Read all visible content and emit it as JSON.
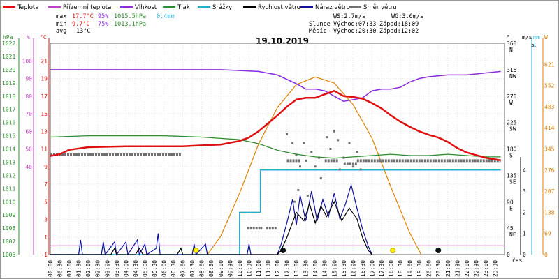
{
  "legend": [
    {
      "label": "Teplota",
      "color": "#e01010"
    },
    {
      "label": "Přízemní teplota",
      "color": "#c040c0"
    },
    {
      "label": "Vlhkost",
      "color": "#8a2be2"
    },
    {
      "label": "Tlak",
      "color": "#2e8b2e"
    },
    {
      "label": "Srážky",
      "color": "#20b0d0"
    },
    {
      "label": "Rychlost větru",
      "color": "#000000"
    },
    {
      "label": "Náraz větru",
      "color": "#1010a0"
    },
    {
      "label": "Směr větru",
      "color": "#707070"
    }
  ],
  "stats": {
    "max": {
      "label": "max",
      "temp": "17.7°C",
      "hum": "95%",
      "press": "1015.5hPa",
      "rain": "0.4mm"
    },
    "min": {
      "label": "min",
      "temp": "9.7°C",
      "hum": "75%",
      "press": "1013.1hPa"
    },
    "avg": {
      "label": "avg",
      "temp": "13°C"
    }
  },
  "wind_info": {
    "ws": "WS:2.7m/s",
    "wg": "WG:3.6m/s"
  },
  "sun_info": {
    "label": "Slunce",
    "rise": "Východ:07:33",
    "set": "Západ:18:09"
  },
  "moon_info": {
    "label": "Měsíc",
    "rise": "Východ:20:30",
    "set": "Západ:12:02"
  },
  "chart_data": {
    "type": "line",
    "title": "19.10.2019",
    "xlabel": "čas",
    "x_ticks": [
      "00:00",
      "00:30",
      "01:00",
      "01:30",
      "02:00",
      "02:30",
      "03:00",
      "03:30",
      "04:00",
      "04:30",
      "05:00",
      "05:30",
      "06:00",
      "06:30",
      "07:00",
      "07:30",
      "08:00",
      "08:30",
      "09:00",
      "09:30",
      "10:00",
      "10:30",
      "11:00",
      "11:30",
      "12:00",
      "12:30",
      "13:00",
      "13:30",
      "14:00",
      "14:30",
      "15:00",
      "15:30",
      "16:00",
      "16:30",
      "17:00",
      "17:30",
      "18:00",
      "18:30",
      "19:00",
      "19:30",
      "20:00",
      "20:30",
      "21:00",
      "21:30",
      "22:00",
      "22:30",
      "23:00",
      "23:30"
    ],
    "axes": {
      "hpa": {
        "label": "hPa",
        "ticks": [
          "1022",
          "1021",
          "1020",
          "1019",
          "1018",
          "1017",
          "1016",
          "1015",
          "1014",
          "1013",
          "1012",
          "1011",
          "1010",
          "1009",
          "1008",
          "1007",
          "1006"
        ]
      },
      "pct": {
        "label": "%",
        "ticks": [
          "100",
          "90",
          "80",
          "70",
          "60",
          "50",
          "40"
        ]
      },
      "temp": {
        "label": "°C",
        "ticks": [
          "21",
          "19",
          "17",
          "15",
          "13",
          "11",
          "9",
          "7",
          "5",
          "3",
          "1",
          "-1"
        ]
      },
      "temp_range": [
        -1,
        23
      ],
      "dir": {
        "label": "°",
        "ticks": [
          "360",
          "315",
          "270",
          "225",
          "180",
          "135",
          "90",
          "45",
          "0"
        ],
        "cardinals": [
          "N",
          "NW",
          "W",
          "SW",
          "S",
          "SE",
          "E",
          "NE"
        ]
      },
      "wind": {
        "label": "m/s",
        "ticks": [
          "4",
          "3",
          "2",
          "1",
          "0"
        ],
        "top": "5"
      },
      "rain": {
        "label": "mm",
        "top": "1"
      },
      "solar": {
        "label": "W",
        "ticks": [
          "621",
          "552",
          "483",
          "414",
          "345",
          "276",
          "207",
          "138",
          "69",
          "0"
        ]
      }
    },
    "series": {
      "temperature": [
        [
          0,
          10.2
        ],
        [
          0.5,
          10.4
        ],
        [
          1,
          10.9
        ],
        [
          2,
          11.2
        ],
        [
          4,
          11.3
        ],
        [
          7,
          11.3
        ],
        [
          8,
          11.4
        ],
        [
          9,
          11.5
        ],
        [
          10,
          11.9
        ],
        [
          10.5,
          12.3
        ],
        [
          11,
          13.0
        ],
        [
          11.5,
          13.9
        ],
        [
          12,
          14.8
        ],
        [
          12.5,
          15.8
        ],
        [
          13,
          16.6
        ],
        [
          13.5,
          16.8
        ],
        [
          14,
          16.8
        ],
        [
          14.5,
          17.2
        ],
        [
          15,
          17.6
        ],
        [
          15.5,
          17.0
        ],
        [
          16,
          16.9
        ],
        [
          16.5,
          16.7
        ],
        [
          17,
          16.2
        ],
        [
          17.5,
          15.6
        ],
        [
          18,
          14.8
        ],
        [
          18.5,
          14.1
        ],
        [
          19,
          13.5
        ],
        [
          19.5,
          13.0
        ],
        [
          20,
          12.6
        ],
        [
          20.5,
          12.3
        ],
        [
          21,
          11.8
        ],
        [
          21.5,
          11.1
        ],
        [
          22,
          10.6
        ],
        [
          22.5,
          10.3
        ],
        [
          23,
          10.0
        ],
        [
          23.8,
          9.7
        ]
      ],
      "humidity": [
        [
          0,
          95
        ],
        [
          5,
          95
        ],
        [
          9,
          95
        ],
        [
          11,
          94
        ],
        [
          12,
          92
        ],
        [
          13,
          87
        ],
        [
          13.5,
          84
        ],
        [
          14,
          84
        ],
        [
          14.5,
          83
        ],
        [
          15,
          80
        ],
        [
          15.5,
          77
        ],
        [
          16,
          78
        ],
        [
          16.5,
          79
        ],
        [
          17,
          83
        ],
        [
          17.5,
          84
        ],
        [
          18,
          84
        ],
        [
          18.5,
          85
        ],
        [
          19,
          88
        ],
        [
          19.5,
          90
        ],
        [
          20,
          91
        ],
        [
          21,
          92
        ],
        [
          22,
          92
        ],
        [
          23.8,
          94
        ]
      ],
      "pressure": [
        [
          0,
          1014.9
        ],
        [
          2,
          1015.0
        ],
        [
          4,
          1015.0
        ],
        [
          6,
          1015.0
        ],
        [
          8,
          1014.9
        ],
        [
          9,
          1014.8
        ],
        [
          10,
          1014.7
        ],
        [
          11,
          1014.4
        ],
        [
          12,
          1013.9
        ],
        [
          13,
          1013.6
        ],
        [
          14,
          1013.4
        ],
        [
          15,
          1013.3
        ],
        [
          16,
          1013.4
        ],
        [
          17,
          1013.5
        ],
        [
          18,
          1013.6
        ],
        [
          19,
          1013.5
        ],
        [
          20,
          1013.5
        ],
        [
          21,
          1013.6
        ],
        [
          22,
          1013.5
        ],
        [
          23,
          1013.4
        ],
        [
          23.8,
          1013.4
        ]
      ],
      "rain": [
        [
          0,
          0
        ],
        [
          10,
          0
        ],
        [
          10,
          0.2
        ],
        [
          11.1,
          0.2
        ],
        [
          11.1,
          0.4
        ],
        [
          23.8,
          0.4
        ]
      ],
      "ground_temp_const": 0,
      "wind_speed": [
        [
          0,
          0
        ],
        [
          3.2,
          0
        ],
        [
          3.4,
          0.3
        ],
        [
          3.5,
          0
        ],
        [
          4.5,
          0
        ],
        [
          4.7,
          0.3
        ],
        [
          4.9,
          0
        ],
        [
          6.7,
          0
        ],
        [
          6.9,
          0.3
        ],
        [
          7.0,
          0
        ],
        [
          10.5,
          0
        ],
        [
          12,
          0
        ],
        [
          12.2,
          0.2
        ],
        [
          12.5,
          0.8
        ],
        [
          13,
          2.0
        ],
        [
          13.4,
          1.6
        ],
        [
          13.7,
          2.4
        ],
        [
          14.0,
          1.5
        ],
        [
          14.3,
          2.3
        ],
        [
          14.6,
          1.8
        ],
        [
          15.0,
          2.5
        ],
        [
          15.4,
          1.6
        ],
        [
          15.8,
          2.2
        ],
        [
          16.2,
          1.7
        ],
        [
          16.5,
          0.8
        ],
        [
          16.8,
          0.2
        ],
        [
          17.0,
          0
        ]
      ],
      "wind_gust": [
        [
          0,
          0
        ],
        [
          1.5,
          0
        ],
        [
          1.6,
          0.7
        ],
        [
          1.7,
          0
        ],
        [
          2.7,
          0
        ],
        [
          2.8,
          0.6
        ],
        [
          2.9,
          0
        ],
        [
          3.4,
          0.6
        ],
        [
          3.5,
          0
        ],
        [
          4.0,
          0.6
        ],
        [
          4.1,
          0
        ],
        [
          4.6,
          0.7
        ],
        [
          4.7,
          0
        ],
        [
          5.0,
          0.5
        ],
        [
          5.1,
          0
        ],
        [
          5.6,
          0.3
        ],
        [
          5.7,
          1.0
        ],
        [
          5.8,
          0
        ],
        [
          7.5,
          0
        ],
        [
          7.6,
          0.5
        ],
        [
          7.7,
          0
        ],
        [
          8.2,
          0.5
        ],
        [
          8.3,
          0
        ],
        [
          10.4,
          0
        ],
        [
          10.5,
          0.5
        ],
        [
          10.6,
          0
        ],
        [
          12.0,
          0
        ],
        [
          12.2,
          0.5
        ],
        [
          12.5,
          1.5
        ],
        [
          12.8,
          2.6
        ],
        [
          13.0,
          1.4
        ],
        [
          13.2,
          2.8
        ],
        [
          13.5,
          1.6
        ],
        [
          13.8,
          3.0
        ],
        [
          14.1,
          1.6
        ],
        [
          14.4,
          2.6
        ],
        [
          14.7,
          1.8
        ],
        [
          15.0,
          2.9
        ],
        [
          15.3,
          1.7
        ],
        [
          15.6,
          2.4
        ],
        [
          15.9,
          3.3
        ],
        [
          16.2,
          2.2
        ],
        [
          16.5,
          1.2
        ],
        [
          16.8,
          0.4
        ],
        [
          17.0,
          0
        ]
      ],
      "wind_dir_segments": [
        [
          0,
          6.9,
          170
        ],
        [
          10.4,
          11.2,
          45
        ],
        [
          11.4,
          12.0,
          45
        ],
        [
          12.5,
          13.2,
          160
        ],
        [
          14.5,
          15.2,
          160
        ],
        [
          15.5,
          16.2,
          155
        ],
        [
          16.2,
          23.8,
          160
        ]
      ],
      "solar": [
        [
          8.3,
          0
        ],
        [
          9,
          60
        ],
        [
          10,
          200
        ],
        [
          11,
          360
        ],
        [
          12,
          480
        ],
        [
          13,
          555
        ],
        [
          14,
          580
        ],
        [
          15,
          560
        ],
        [
          16,
          490
        ],
        [
          17,
          380
        ],
        [
          18,
          220
        ],
        [
          19,
          70
        ],
        [
          19.6,
          0
        ]
      ],
      "markers": [
        {
          "type": "sun",
          "time": 7.7
        },
        {
          "type": "moon",
          "time": 12.3
        },
        {
          "type": "sun",
          "time": 18.1
        },
        {
          "type": "moon",
          "time": 20.5
        }
      ]
    }
  }
}
